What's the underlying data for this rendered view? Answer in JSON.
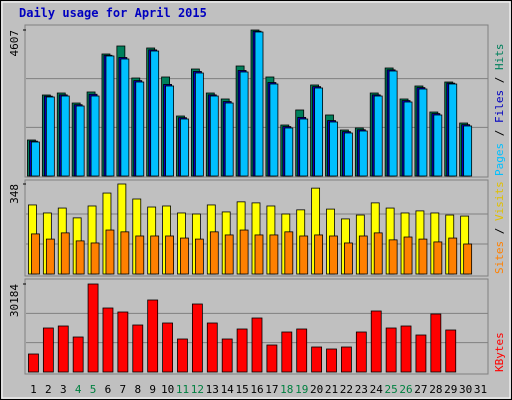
{
  "chart_data": [
    {
      "type": "bar",
      "title": "Daily usage for April 2015",
      "legend_separator": " / ",
      "ylim": [
        0,
        4607
      ],
      "yticks": [
        4607
      ],
      "series": [
        {
          "name": "Hits",
          "color": "#00805c",
          "values": [
            1136,
            2556,
            2619,
            2303,
            2651,
            3850,
            4102,
            3092,
            4039,
            3124,
            1893,
            3376,
            2619,
            2430,
            3471,
            4607,
            3124,
            1609,
            2083,
            2872,
            1925,
            1451,
            1515,
            2619,
            3408,
            2430,
            2840,
            2019,
            2966,
            1672,
            null
          ]
        },
        {
          "name": "Files",
          "color": "#0000c0",
          "values": [
            1100,
            2520,
            2560,
            2250,
            2580,
            3810,
            3740,
            3010,
            3980,
            2890,
            1840,
            3300,
            2560,
            2350,
            3330,
            4570,
            2950,
            1560,
            1850,
            2820,
            1750,
            1400,
            1460,
            2560,
            3350,
            2380,
            2790,
            1970,
            2930,
            1620,
            null
          ]
        },
        {
          "name": "Pages",
          "color": "#00c0ff",
          "values": [
            1073,
            2493,
            2524,
            2209,
            2524,
            3787,
            3692,
            2966,
            3944,
            2840,
            1799,
            3250,
            2524,
            2303,
            3282,
            4544,
            2903,
            1515,
            1799,
            2777,
            1704,
            1357,
            1420,
            2524,
            3313,
            2335,
            2745,
            1925,
            2903,
            1578,
            null
          ]
        }
      ]
    },
    {
      "type": "bar",
      "legend_separator": " / ",
      "ylim": [
        0,
        348
      ],
      "yticks": [
        348
      ],
      "series": [
        {
          "name": "Visits",
          "color": "#ffff00",
          "values": [
            267,
            236,
            255,
            217,
            263,
            313,
            348,
            290,
            259,
            263,
            236,
            232,
            267,
            240,
            279,
            275,
            263,
            232,
            248,
            332,
            251,
            213,
            228,
            275,
            255,
            236,
            244,
            236,
            228,
            224,
            null
          ]
        },
        {
          "name": "Sites",
          "color": "#ff8000",
          "values": [
            155,
            135,
            159,
            128,
            120,
            170,
            163,
            147,
            147,
            147,
            139,
            135,
            163,
            151,
            170,
            151,
            151,
            163,
            147,
            151,
            147,
            120,
            147,
            159,
            132,
            143,
            135,
            124,
            139,
            116,
            null
          ]
        }
      ]
    },
    {
      "type": "bar",
      "ylim": [
        0,
        30184
      ],
      "yticks": [
        30184
      ],
      "categories": [
        "1",
        "2",
        "3",
        "4",
        "5",
        "6",
        "7",
        "8",
        "9",
        "10",
        "11",
        "12",
        "13",
        "14",
        "15",
        "16",
        "17",
        "18",
        "19",
        "20",
        "21",
        "22",
        "23",
        "24",
        "25",
        "26",
        "27",
        "28",
        "29",
        "30",
        "31"
      ],
      "category_colors": [
        "#000000",
        "#000000",
        "#000000",
        "#008040",
        "#008040",
        "#000000",
        "#000000",
        "#000000",
        "#000000",
        "#000000",
        "#008040",
        "#008040",
        "#000000",
        "#000000",
        "#000000",
        "#000000",
        "#000000",
        "#008040",
        "#008040",
        "#000000",
        "#000000",
        "#000000",
        "#000000",
        "#000000",
        "#008040",
        "#008040",
        "#000000",
        "#000000",
        "#000000",
        "#000000",
        "#000000"
      ],
      "series": [
        {
          "name": "KBytes",
          "color": "#ff0000",
          "values": [
            6174,
            15092,
            15778,
            12005,
            30184,
            21952,
            20580,
            16121,
            24696,
            16807,
            11319,
            23324,
            16807,
            11319,
            14749,
            18522,
            9261,
            13720,
            14749,
            8575,
            7889,
            8575,
            13720,
            20924,
            15092,
            15778,
            12691,
            19894,
            14406,
            null,
            null
          ]
        }
      ]
    }
  ]
}
